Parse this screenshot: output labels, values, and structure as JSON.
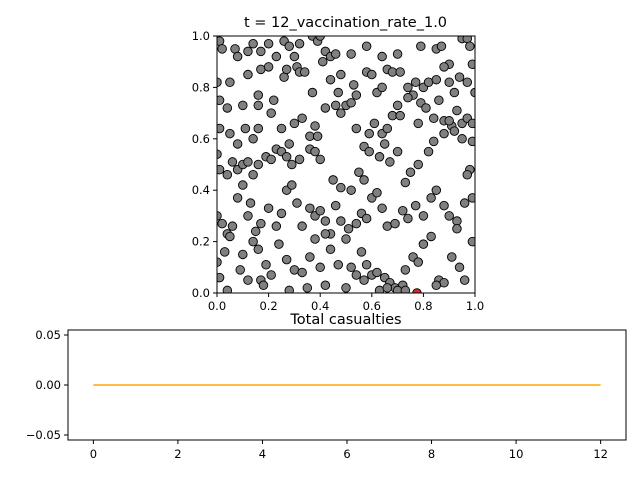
{
  "chart_data": [
    {
      "type": "scatter",
      "title": "t = 12_vaccination_rate_1.0",
      "xlim": [
        0,
        1
      ],
      "ylim": [
        0,
        1
      ],
      "xticks": [
        "0.0",
        "0.2",
        "0.4",
        "0.6",
        "0.8",
        "1.0"
      ],
      "yticks": [
        "0.0",
        "0.2",
        "0.4",
        "0.6",
        "0.8",
        "1.0"
      ],
      "grid": false,
      "colors": {
        "healthy": "#808080",
        "infected": "#d62728",
        "edge": "#000000"
      },
      "series": [
        {
          "category": "healthy",
          "points": [
            [
              0.01,
              0.98
            ],
            [
              0.02,
              0.95
            ],
            [
              0.04,
              0.72
            ],
            [
              0.07,
              0.95
            ],
            [
              0.08,
              0.92
            ],
            [
              0.12,
              0.94
            ],
            [
              0.14,
              0.97
            ],
            [
              0.17,
              0.94
            ],
            [
              0.2,
              0.97
            ],
            [
              0.23,
              0.92
            ],
            [
              0.26,
              0.98
            ],
            [
              0.28,
              0.96
            ],
            [
              0.3,
              0.92
            ],
            [
              0.32,
              0.97
            ],
            [
              0.37,
              1.0
            ],
            [
              0.39,
              0.98
            ],
            [
              0.4,
              1.0
            ],
            [
              0.42,
              0.94
            ],
            [
              0.44,
              0.92
            ],
            [
              0.46,
              0.93
            ],
            [
              0.52,
              0.93
            ],
            [
              0.58,
              0.96
            ],
            [
              0.64,
              0.92
            ],
            [
              0.7,
              0.93
            ],
            [
              0.79,
              0.96
            ],
            [
              0.85,
              0.95
            ],
            [
              0.87,
              0.96
            ],
            [
              0.9,
              0.89
            ],
            [
              0.95,
              0.99
            ],
            [
              0.97,
              0.99
            ],
            [
              0.98,
              0.96
            ],
            [
              0.99,
              0.89
            ],
            [
              0.0,
              0.82
            ],
            [
              0.01,
              0.75
            ],
            [
              0.05,
              0.82
            ],
            [
              0.1,
              0.73
            ],
            [
              0.12,
              0.85
            ],
            [
              0.16,
              0.77
            ],
            [
              0.17,
              0.87
            ],
            [
              0.2,
              0.88
            ],
            [
              0.22,
              0.75
            ],
            [
              0.26,
              0.84
            ],
            [
              0.27,
              0.87
            ],
            [
              0.31,
              0.88
            ],
            [
              0.32,
              0.86
            ],
            [
              0.34,
              0.86
            ],
            [
              0.37,
              0.78
            ],
            [
              0.41,
              0.9
            ],
            [
              0.44,
              0.83
            ],
            [
              0.47,
              0.78
            ],
            [
              0.48,
              0.85
            ],
            [
              0.53,
              0.81
            ],
            [
              0.54,
              0.77
            ],
            [
              0.58,
              0.86
            ],
            [
              0.6,
              0.85
            ],
            [
              0.62,
              0.78
            ],
            [
              0.64,
              0.8
            ],
            [
              0.66,
              0.87
            ],
            [
              0.68,
              0.86
            ],
            [
              0.71,
              0.86
            ],
            [
              0.74,
              0.8
            ],
            [
              0.76,
              0.77
            ],
            [
              0.77,
              0.82
            ],
            [
              0.8,
              0.8
            ],
            [
              0.82,
              0.82
            ],
            [
              0.85,
              0.83
            ],
            [
              0.88,
              0.88
            ],
            [
              0.9,
              0.82
            ],
            [
              0.92,
              0.78
            ],
            [
              0.94,
              0.84
            ],
            [
              0.97,
              0.82
            ],
            [
              1.0,
              0.78
            ],
            [
              0.01,
              0.64
            ],
            [
              0.05,
              0.62
            ],
            [
              0.08,
              0.58
            ],
            [
              0.11,
              0.64
            ],
            [
              0.14,
              0.6
            ],
            [
              0.16,
              0.64
            ],
            [
              0.16,
              0.73
            ],
            [
              0.21,
              0.7
            ],
            [
              0.25,
              0.64
            ],
            [
              0.28,
              0.58
            ],
            [
              0.3,
              0.66
            ],
            [
              0.33,
              0.68
            ],
            [
              0.36,
              0.61
            ],
            [
              0.38,
              0.65
            ],
            [
              0.39,
              0.61
            ],
            [
              0.42,
              0.72
            ],
            [
              0.46,
              0.73
            ],
            [
              0.48,
              0.7
            ],
            [
              0.5,
              0.73
            ],
            [
              0.52,
              0.74
            ],
            [
              0.54,
              0.64
            ],
            [
              0.57,
              0.57
            ],
            [
              0.59,
              0.62
            ],
            [
              0.61,
              0.66
            ],
            [
              0.64,
              0.62
            ],
            [
              0.66,
              0.64
            ],
            [
              0.68,
              0.69
            ],
            [
              0.7,
              0.73
            ],
            [
              0.71,
              0.69
            ],
            [
              0.74,
              0.76
            ],
            [
              0.78,
              0.66
            ],
            [
              0.79,
              0.74
            ],
            [
              0.81,
              0.72
            ],
            [
              0.84,
              0.68
            ],
            [
              0.86,
              0.75
            ],
            [
              0.88,
              0.67
            ],
            [
              0.91,
              0.65
            ],
            [
              0.93,
              0.71
            ],
            [
              0.95,
              0.66
            ],
            [
              0.97,
              0.68
            ],
            [
              0.99,
              0.66
            ],
            [
              0.0,
              0.54
            ],
            [
              0.01,
              0.48
            ],
            [
              0.04,
              0.46
            ],
            [
              0.06,
              0.51
            ],
            [
              0.08,
              0.48
            ],
            [
              0.1,
              0.5
            ],
            [
              0.12,
              0.51
            ],
            [
              0.14,
              0.46
            ],
            [
              0.16,
              0.5
            ],
            [
              0.19,
              0.53
            ],
            [
              0.21,
              0.52
            ],
            [
              0.23,
              0.56
            ],
            [
              0.25,
              0.55
            ],
            [
              0.27,
              0.53
            ],
            [
              0.29,
              0.5
            ],
            [
              0.32,
              0.52
            ],
            [
              0.36,
              0.56
            ],
            [
              0.38,
              0.55
            ],
            [
              0.4,
              0.52
            ],
            [
              0.45,
              0.44
            ],
            [
              0.48,
              0.41
            ],
            [
              0.52,
              0.4
            ],
            [
              0.55,
              0.47
            ],
            [
              0.57,
              0.44
            ],
            [
              0.59,
              0.55
            ],
            [
              0.63,
              0.53
            ],
            [
              0.65,
              0.58
            ],
            [
              0.67,
              0.51
            ],
            [
              0.7,
              0.55
            ],
            [
              0.73,
              0.43
            ],
            [
              0.75,
              0.47
            ],
            [
              0.78,
              0.5
            ],
            [
              0.82,
              0.55
            ],
            [
              0.84,
              0.59
            ],
            [
              0.88,
              0.62
            ],
            [
              0.9,
              0.67
            ],
            [
              0.92,
              0.63
            ],
            [
              0.95,
              0.6
            ],
            [
              0.98,
              0.48
            ],
            [
              0.0,
              0.3
            ],
            [
              0.02,
              0.27
            ],
            [
              0.04,
              0.23
            ],
            [
              0.06,
              0.26
            ],
            [
              0.08,
              0.37
            ],
            [
              0.1,
              0.42
            ],
            [
              0.12,
              0.3
            ],
            [
              0.13,
              0.35
            ],
            [
              0.15,
              0.24
            ],
            [
              0.17,
              0.27
            ],
            [
              0.2,
              0.33
            ],
            [
              0.23,
              0.26
            ],
            [
              0.25,
              0.31
            ],
            [
              0.27,
              0.4
            ],
            [
              0.29,
              0.42
            ],
            [
              0.31,
              0.35
            ],
            [
              0.33,
              0.26
            ],
            [
              0.36,
              0.33
            ],
            [
              0.38,
              0.3
            ],
            [
              0.4,
              0.32
            ],
            [
              0.42,
              0.28
            ],
            [
              0.44,
              0.23
            ],
            [
              0.46,
              0.34
            ],
            [
              0.48,
              0.28
            ],
            [
              0.51,
              0.25
            ],
            [
              0.54,
              0.27
            ],
            [
              0.56,
              0.31
            ],
            [
              0.58,
              0.29
            ],
            [
              0.6,
              0.37
            ],
            [
              0.62,
              0.39
            ],
            [
              0.64,
              0.33
            ],
            [
              0.66,
              0.26
            ],
            [
              0.69,
              0.27
            ],
            [
              0.72,
              0.32
            ],
            [
              0.74,
              0.29
            ],
            [
              0.77,
              0.34
            ],
            [
              0.8,
              0.3
            ],
            [
              0.83,
              0.37
            ],
            [
              0.85,
              0.4
            ],
            [
              0.88,
              0.34
            ],
            [
              0.9,
              0.3
            ],
            [
              0.93,
              0.28
            ],
            [
              0.96,
              0.35
            ],
            [
              0.99,
              0.37
            ],
            [
              0.0,
              0.12
            ],
            [
              0.01,
              0.06
            ],
            [
              0.03,
              0.16
            ],
            [
              0.05,
              0.22
            ],
            [
              0.09,
              0.09
            ],
            [
              0.1,
              0.15
            ],
            [
              0.12,
              0.05
            ],
            [
              0.14,
              0.2
            ],
            [
              0.16,
              0.17
            ],
            [
              0.17,
              0.05
            ],
            [
              0.19,
              0.11
            ],
            [
              0.21,
              0.07
            ],
            [
              0.24,
              0.19
            ],
            [
              0.27,
              0.13
            ],
            [
              0.3,
              0.09
            ],
            [
              0.33,
              0.08
            ],
            [
              0.36,
              0.14
            ],
            [
              0.38,
              0.21
            ],
            [
              0.4,
              0.1
            ],
            [
              0.42,
              0.23
            ],
            [
              0.44,
              0.17
            ],
            [
              0.47,
              0.11
            ],
            [
              0.5,
              0.21
            ],
            [
              0.52,
              0.1
            ],
            [
              0.54,
              0.07
            ],
            [
              0.56,
              0.16
            ],
            [
              0.58,
              0.11
            ],
            [
              0.6,
              0.07
            ],
            [
              0.62,
              0.08
            ],
            [
              0.65,
              0.06
            ],
            [
              0.67,
              0.04
            ],
            [
              0.69,
              0.02
            ],
            [
              0.72,
              0.03
            ],
            [
              0.73,
              0.09
            ],
            [
              0.76,
              0.14
            ],
            [
              0.78,
              0.12
            ],
            [
              0.8,
              0.19
            ],
            [
              0.83,
              0.22
            ],
            [
              0.86,
              0.05
            ],
            [
              0.88,
              0.04
            ],
            [
              0.91,
              0.14
            ],
            [
              0.94,
              0.1
            ],
            [
              0.96,
              0.05
            ],
            [
              0.99,
              0.2
            ],
            [
              0.04,
              0.01
            ],
            [
              0.18,
              0.03
            ],
            [
              0.28,
              0.01
            ],
            [
              0.35,
              0.02
            ],
            [
              0.42,
              0.03
            ],
            [
              0.5,
              0.02
            ],
            [
              0.57,
              0.05
            ],
            [
              0.63,
              0.01
            ],
            [
              0.66,
              0.02
            ],
            [
              0.7,
              0.01
            ],
            [
              0.73,
              0.01
            ],
            [
              0.85,
              0.03
            ],
            [
              0.93,
              0.25
            ],
            [
              0.97,
              0.46
            ],
            [
              0.99,
              0.59
            ]
          ]
        },
        {
          "category": "infected",
          "points": [
            [
              0.775,
              0.0
            ]
          ]
        }
      ]
    },
    {
      "type": "line",
      "title": "Total casualties",
      "xlim": [
        -0.6,
        12.6
      ],
      "ylim": [
        -0.055,
        0.055
      ],
      "xticks": [
        "0",
        "2",
        "4",
        "6",
        "8",
        "10",
        "12"
      ],
      "yticks": [
        "−0.05",
        "0.00",
        "0.05"
      ],
      "grid": false,
      "series": [
        {
          "color": "#ffa500",
          "x": [
            0,
            1,
            2,
            3,
            4,
            5,
            6,
            7,
            8,
            9,
            10,
            11,
            12
          ],
          "y": [
            0,
            0,
            0,
            0,
            0,
            0,
            0,
            0,
            0,
            0,
            0,
            0,
            0
          ]
        }
      ]
    }
  ]
}
